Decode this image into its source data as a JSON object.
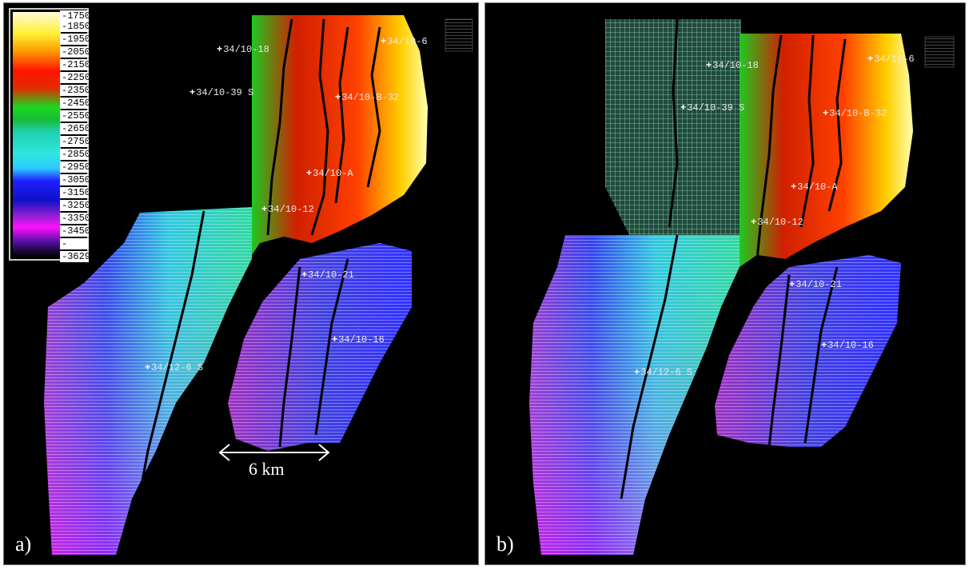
{
  "legend": {
    "ticks": [
      "-1750",
      "-1850",
      "-1950",
      "-2050",
      "-2150",
      "-2250",
      "-2350",
      "-2450",
      "-2550",
      "-2650",
      "-2750",
      "-2850",
      "-2950",
      "-3050",
      "-3150",
      "-3250",
      "-3350",
      "-3450",
      "-",
      "-3629"
    ]
  },
  "panels": [
    {
      "letter": "a)",
      "wells": [
        "34/10-18",
        "34/10-6",
        "34/10-39 S",
        "34/10-B-32",
        "34/10-A",
        "34/10-12",
        "34/10-21",
        "34/10-16",
        "34/12-6 S"
      ]
    },
    {
      "letter": "b)",
      "wells": [
        "34/10-18",
        "34/10-6",
        "34/10-39 S",
        "34/10-B-32",
        "34/10-A",
        "34/10-12",
        "34/10-21",
        "34/10-16",
        "34/12-6 S"
      ]
    }
  ],
  "scale_bar": {
    "label": "6 km"
  },
  "colors": {
    "shallow": "#ffff40",
    "mid": "#ff2000",
    "green": "#20d020",
    "cyan": "#30d8e0",
    "blue": "#2020ff",
    "magenta": "#ff10ff"
  }
}
